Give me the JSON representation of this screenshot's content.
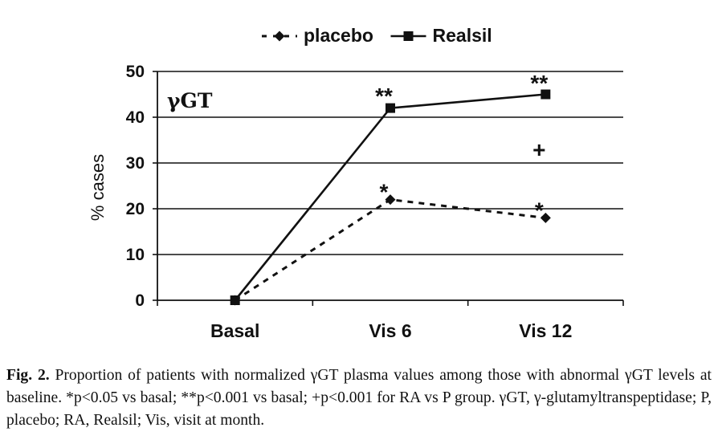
{
  "chart_data": {
    "type": "line",
    "categories": [
      "Basal",
      "Vis 6",
      "Vis 12"
    ],
    "series": [
      {
        "name": "placebo",
        "values": [
          0,
          22,
          18
        ],
        "style": "dashed",
        "marker": "diamond",
        "color": "#111111"
      },
      {
        "name": "Realsil",
        "values": [
          0,
          42,
          45
        ],
        "style": "solid",
        "marker": "square",
        "color": "#111111"
      }
    ],
    "ylabel": "% cases",
    "ylim": [
      0,
      50
    ],
    "yticks": [
      0,
      10,
      20,
      30,
      40,
      50
    ],
    "grid": true,
    "legend_position": "top",
    "panel_label": "γGT",
    "annotations": [
      {
        "text": "**",
        "category": "Vis 6",
        "y": 46.5
      },
      {
        "text": "**",
        "category": "Vis 12",
        "y": 49.3
      },
      {
        "text": "+",
        "category": "Vis 12",
        "y": 33
      },
      {
        "text": "*",
        "category": "Vis 6",
        "y": 25.5
      },
      {
        "text": "*",
        "category": "Vis 12",
        "y": 21.5
      }
    ]
  },
  "caption": {
    "label": "Fig. 2.",
    "text": " Proportion of patients with normalized γGT plasma values among those with abnormal γGT levels at baseline. *p<0.05 vs basal; **p<0.001 vs basal; +p<0.001 for RA vs P group. γGT, γ-glutamyltranspeptidase; P, placebo; RA, Realsil; Vis, visit at month."
  }
}
